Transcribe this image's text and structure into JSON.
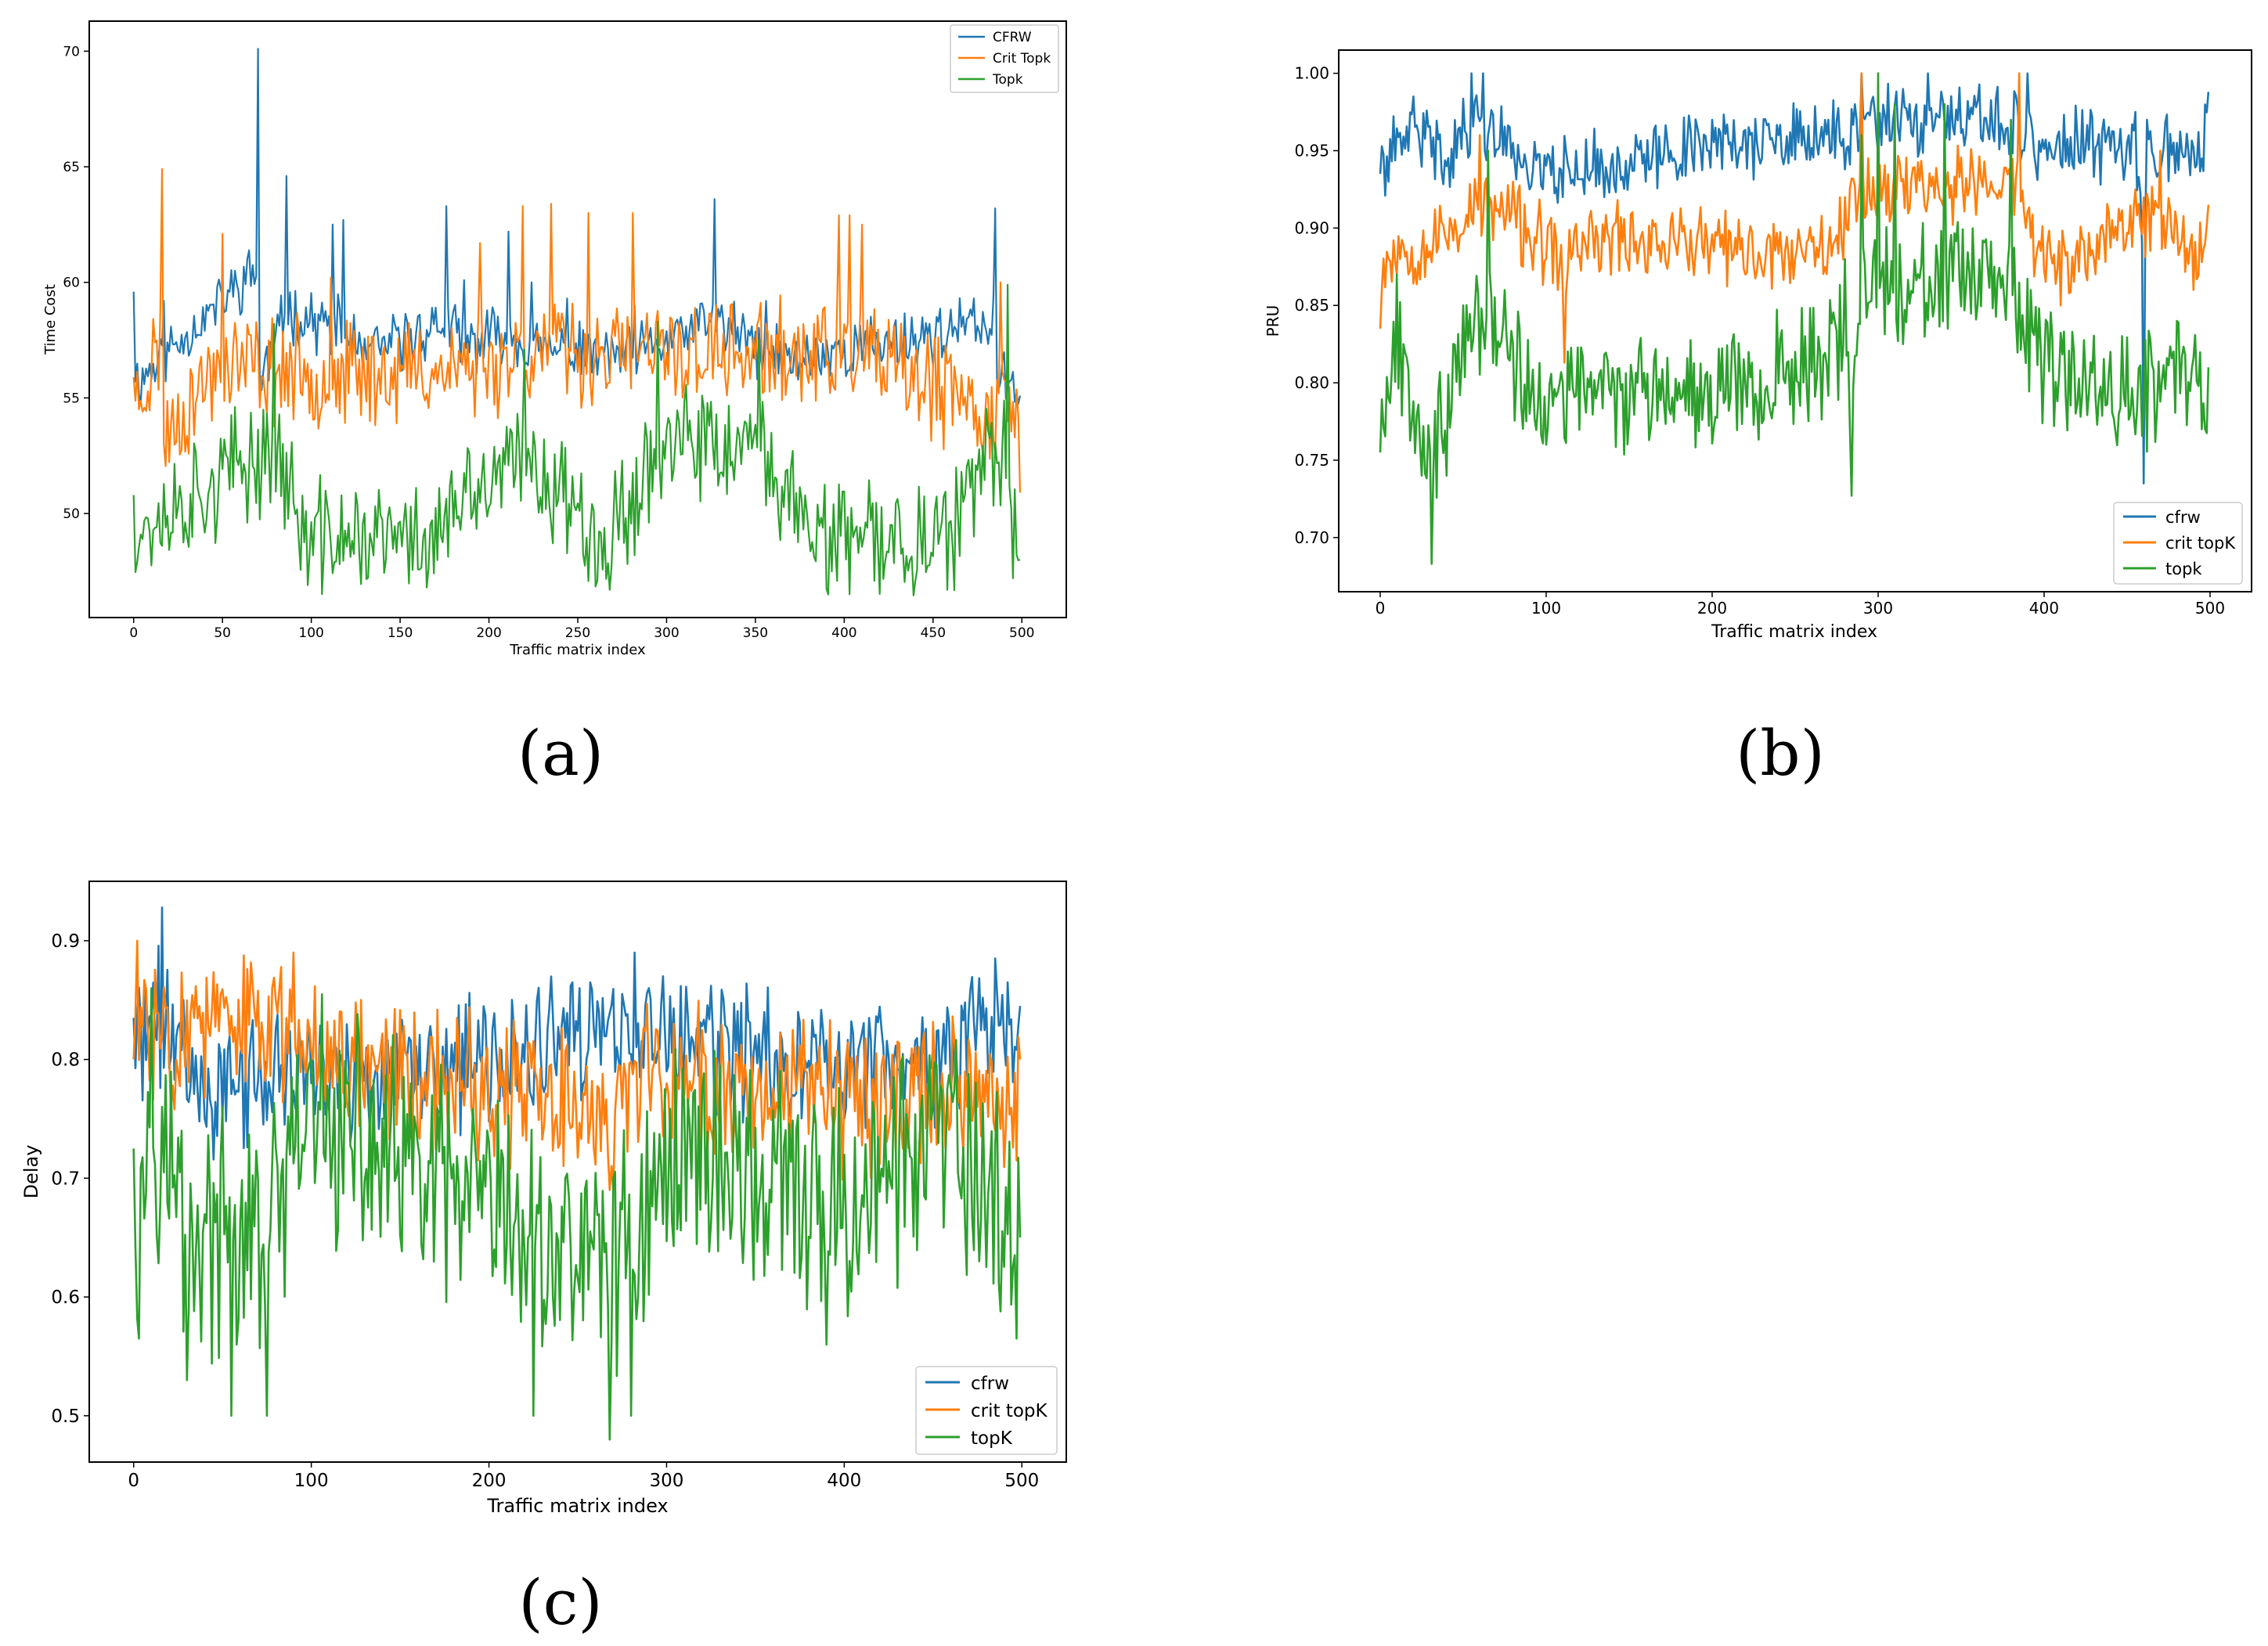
{
  "figure": {
    "panel_labels": [
      "(a)",
      "(b)",
      "(c)"
    ]
  },
  "chart_data": [
    {
      "type": "line",
      "panel": "(a)",
      "title": "",
      "xlabel": "Traffic matrix index",
      "ylabel": "Time Cost",
      "xlim": [
        -25,
        525
      ],
      "ylim": [
        45.5,
        71.3
      ],
      "xticks": [
        0,
        50,
        100,
        150,
        200,
        250,
        300,
        350,
        400,
        450,
        500
      ],
      "yticks": [
        50,
        55,
        60,
        65,
        70
      ],
      "ytick_labels": [
        "50",
        "55",
        "60",
        "65",
        "70"
      ],
      "legend_position": "top-right",
      "series": [
        {
          "name": "CFRW",
          "color": "#1f77b4",
          "n": 500,
          "base": 55.6,
          "amp": 1.0,
          "seed": 11,
          "low_only": false,
          "anchors": [
            [
              0,
              59.6
            ],
            [
              1,
              55.7
            ],
            [
              17,
              59.2
            ],
            [
              70,
              70.1
            ],
            [
              71,
              55.6
            ],
            [
              86,
              64.6
            ],
            [
              112,
              62.5
            ],
            [
              118,
              62.7
            ],
            [
              124,
              58.6
            ],
            [
              176,
              63.3
            ],
            [
              186,
              60.1
            ],
            [
              211,
              62.2
            ],
            [
              224,
              60.0
            ],
            [
              244,
              59.3
            ],
            [
              282,
              59.0
            ],
            [
              327,
              63.6
            ],
            [
              356,
              59.2
            ],
            [
              362,
              58.2
            ],
            [
              485,
              63.2
            ],
            [
              486,
              55.8
            ],
            [
              499,
              55.1
            ]
          ]
        },
        {
          "name": "Crit Topk",
          "color": "#ff7f0e",
          "n": 500,
          "base": 53.6,
          "amp": 1.8,
          "seed": 23,
          "low_only": false,
          "anchors": [
            [
              0,
              55.9
            ],
            [
              16,
              64.9
            ],
            [
              17,
              53.0
            ],
            [
              50,
              62.1
            ],
            [
              111,
              60.2
            ],
            [
              195,
              61.7
            ],
            [
              219,
              63.3
            ],
            [
              235,
              63.4
            ],
            [
              256,
              63.0
            ],
            [
              281,
              63.0
            ],
            [
              397,
              62.9
            ],
            [
              403,
              62.9
            ],
            [
              410,
              62.5
            ],
            [
              487,
              55.2
            ],
            [
              488,
              60.0
            ],
            [
              499,
              50.9
            ]
          ]
        },
        {
          "name": "Topk",
          "color": "#2ca02c",
          "n": 500,
          "base": 50.0,
          "amp": 2.0,
          "seed": 37,
          "low_only": false,
          "anchors": [
            [
              0,
              50.8
            ],
            [
              2,
              47.9
            ],
            [
              79,
              58.2
            ],
            [
              98,
              46.9
            ],
            [
              165,
              46.8
            ],
            [
              220,
              57.1
            ],
            [
              268,
              46.7
            ],
            [
              295,
              58.3
            ],
            [
              352,
              57.5
            ],
            [
              391,
              46.5
            ],
            [
              458,
              46.7
            ],
            [
              492,
              59.9
            ],
            [
              495,
              47.2
            ],
            [
              499,
              48.0
            ]
          ]
        }
      ]
    },
    {
      "type": "line",
      "panel": "(b)",
      "title": "",
      "xlabel": "Traffic matrix index",
      "ylabel": "PRU",
      "xlim": [
        -25,
        525
      ],
      "ylim": [
        0.665,
        1.015
      ],
      "xticks": [
        0,
        100,
        200,
        300,
        400,
        500
      ],
      "yticks": [
        0.7,
        0.75,
        0.8,
        0.85,
        0.9,
        0.95,
        1.0
      ],
      "ytick_labels": [
        "0.70",
        "0.75",
        "0.80",
        "0.85",
        "0.90",
        "0.95",
        "1.00"
      ],
      "legend_position": "bottom-right",
      "series": [
        {
          "name": "cfrw",
          "color": "#1f77b4",
          "n": 500,
          "base": 0.95,
          "amp": 0.018,
          "seed": 41,
          "low_only": false,
          "anchors": [
            [
              0,
              0.935
            ],
            [
              5,
              0.93
            ],
            [
              20,
              0.985
            ],
            [
              40,
              0.94
            ],
            [
              55,
              1.0
            ],
            [
              62,
              1.0
            ],
            [
              80,
              0.955
            ],
            [
              90,
              0.925
            ],
            [
              110,
              0.92
            ],
            [
              135,
              0.92
            ],
            [
              160,
              0.93
            ],
            [
              175,
              0.95
            ],
            [
              200,
              0.97
            ],
            [
              240,
              0.96
            ],
            [
              270,
              0.97
            ],
            [
              286,
              0.98
            ],
            [
              290,
              1.0
            ],
            [
              330,
              1.0
            ],
            [
              390,
              1.0
            ],
            [
              395,
              0.94
            ],
            [
              420,
              0.96
            ],
            [
              440,
              0.95
            ],
            [
              455,
              0.975
            ],
            [
              460,
              0.735
            ],
            [
              462,
              0.97
            ],
            [
              480,
              0.955
            ],
            [
              495,
              0.945
            ],
            [
              499,
              0.988
            ]
          ]
        },
        {
          "name": "crit topK",
          "color": "#ff7f0e",
          "n": 500,
          "base": 0.89,
          "amp": 0.02,
          "seed": 53,
          "low_only": false,
          "anchors": [
            [
              0,
              0.835
            ],
            [
              5,
              0.88
            ],
            [
              30,
              0.885
            ],
            [
              60,
              0.96
            ],
            [
              80,
              0.93
            ],
            [
              100,
              0.88
            ],
            [
              110,
              0.86
            ],
            [
              111,
              0.813
            ],
            [
              115,
              0.88
            ],
            [
              140,
              0.9
            ],
            [
              180,
              0.895
            ],
            [
              220,
              0.87
            ],
            [
              250,
              0.88
            ],
            [
              280,
              0.92
            ],
            [
              290,
              1.0
            ],
            [
              385,
              1.0
            ],
            [
              395,
              0.88
            ],
            [
              410,
              0.85
            ],
            [
              430,
              0.88
            ],
            [
              455,
              0.925
            ],
            [
              470,
              0.95
            ],
            [
              490,
              0.86
            ],
            [
              499,
              0.915
            ]
          ]
        },
        {
          "name": "topk",
          "color": "#2ca02c",
          "n": 500,
          "base": 0.8,
          "amp": 0.03,
          "seed": 67,
          "low_only": false,
          "anchors": [
            [
              0,
              0.755
            ],
            [
              10,
              0.87
            ],
            [
              25,
              0.74
            ],
            [
              31,
              0.683
            ],
            [
              40,
              0.74
            ],
            [
              50,
              0.85
            ],
            [
              65,
              0.95
            ],
            [
              75,
              0.86
            ],
            [
              90,
              0.78
            ],
            [
              100,
              0.76
            ],
            [
              130,
              0.79
            ],
            [
              160,
              0.79
            ],
            [
              180,
              0.8
            ],
            [
              220,
              0.8
            ],
            [
              250,
              0.82
            ],
            [
              280,
              0.88
            ],
            [
              284,
              0.727
            ],
            [
              290,
              0.96
            ],
            [
              300,
              1.0
            ],
            [
              310,
              0.98
            ],
            [
              340,
              0.98
            ],
            [
              380,
              0.97
            ],
            [
              392,
              0.86
            ],
            [
              400,
              0.81
            ],
            [
              440,
              0.82
            ],
            [
              460,
              0.78
            ],
            [
              480,
              0.84
            ],
            [
              495,
              0.77
            ],
            [
              499,
              0.81
            ]
          ]
        }
      ]
    },
    {
      "type": "line",
      "panel": "(c)",
      "title": "",
      "xlabel": "Traffic matrix index",
      "ylabel": "Delay",
      "xlim": [
        -25,
        525
      ],
      "ylim": [
        0.461,
        0.95
      ],
      "xticks": [
        0,
        100,
        200,
        300,
        400,
        500
      ],
      "yticks": [
        0.5,
        0.6,
        0.7,
        0.8,
        0.9
      ],
      "ytick_labels": [
        "0.5",
        "0.6",
        "0.7",
        "0.8",
        "0.9"
      ],
      "legend_position": "bottom-right",
      "series": [
        {
          "name": "cfrw",
          "color": "#1f77b4",
          "n": 500,
          "base": 0.79,
          "amp": 0.045,
          "seed": 71,
          "low_only": false,
          "anchors": [
            [
              0,
              0.835
            ],
            [
              16,
              0.928
            ],
            [
              40,
              0.75
            ],
            [
              100,
              0.78
            ],
            [
              180,
              0.79
            ],
            [
              282,
              0.89
            ],
            [
              350,
              0.82
            ],
            [
              450,
              0.81
            ],
            [
              485,
              0.885
            ],
            [
              499,
              0.845
            ]
          ]
        },
        {
          "name": "crit topK",
          "color": "#ff7f0e",
          "n": 500,
          "base": 0.79,
          "amp": 0.05,
          "seed": 83,
          "low_only": false,
          "anchors": [
            [
              0,
              0.8
            ],
            [
              2,
              0.9
            ],
            [
              90,
              0.89
            ],
            [
              180,
              0.76
            ],
            [
              270,
              0.69
            ],
            [
              300,
              0.78
            ],
            [
              415,
              0.7
            ],
            [
              475,
              0.76
            ],
            [
              497,
              0.715
            ],
            [
              499,
              0.8
            ]
          ]
        },
        {
          "name": "topK",
          "color": "#2ca02c",
          "n": 500,
          "base": 0.72,
          "amp": 0.08,
          "seed": 97,
          "low_only": false,
          "anchors": [
            [
              0,
              0.725
            ],
            [
              3,
              0.565
            ],
            [
              10,
              0.86
            ],
            [
              30,
              0.53
            ],
            [
              55,
              0.5
            ],
            [
              75,
              0.5
            ],
            [
              100,
              0.8
            ],
            [
              225,
              0.5
            ],
            [
              268,
              0.48
            ],
            [
              280,
              0.5
            ],
            [
              310,
              0.76
            ],
            [
              390,
              0.56
            ],
            [
              450,
              0.76
            ],
            [
              497,
              0.565
            ],
            [
              499,
              0.65
            ]
          ]
        }
      ]
    }
  ]
}
